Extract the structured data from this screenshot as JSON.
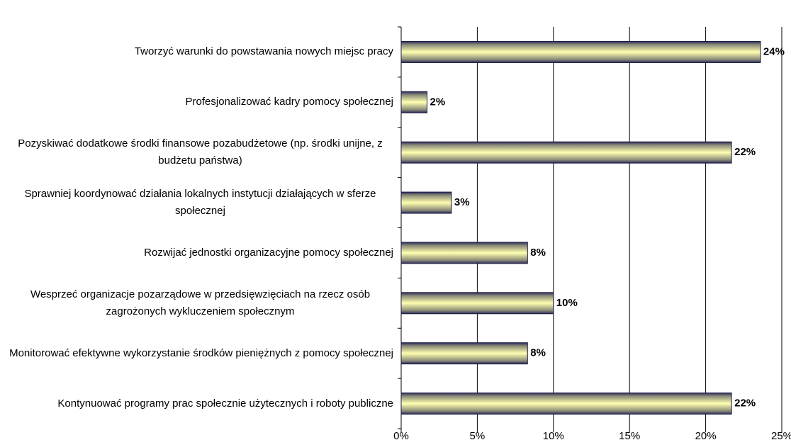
{
  "chart_data": {
    "type": "barh",
    "categories": [
      "Tworzyć warunki do powstawania nowych miejsc pracy",
      "Profesjonalizować kadry pomocy społecznej",
      "Pozyskiwać dodatkowe środki finansowe pozabudżetowe (np. środki unijne, z budżetu państwa)",
      "Sprawniej koordynować działania lokalnych instytucji działających w sferze społecznej",
      "Rozwijać jednostki organizacyjne pomocy społecznej",
      "Wesprzeć organizacje pozarządowe w przedsięwzięciach na rzecz osób zagrożonych wykluczeniem społecznym",
      "Monitorować efektywne wykorzystanie środków pieniężnych z pomocy społecznej",
      "Kontynuować programy prac społecznie użytecznych i roboty publiczne"
    ],
    "values": [
      23.6,
      1.7,
      21.7,
      3.3,
      8.3,
      10.0,
      8.3,
      21.7
    ],
    "value_labels": [
      "24%",
      "2%",
      "22%",
      "3%",
      "8%",
      "10%",
      "8%",
      "22%"
    ],
    "xlim": [
      0,
      25
    ],
    "xticks": [
      {
        "value": 0,
        "label": "0%"
      },
      {
        "value": 5,
        "label": "5%"
      },
      {
        "value": 10,
        "label": "10%"
      },
      {
        "value": 15,
        "label": "15%"
      },
      {
        "value": 20,
        "label": "20%"
      },
      {
        "value": 25,
        "label": "25%"
      }
    ],
    "grid": true,
    "color": "#ffffb0"
  }
}
